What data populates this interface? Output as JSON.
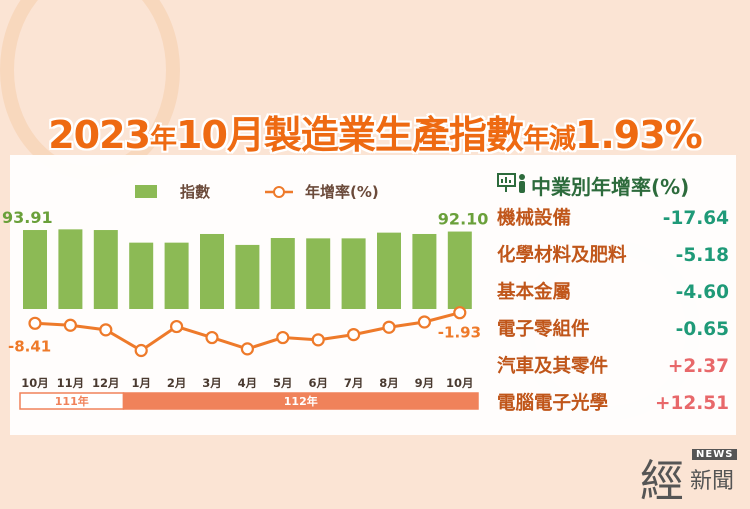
{
  "title": {
    "year": "2023",
    "nian": "年",
    "month": "10月",
    "main": "製造業生產指數",
    "suffix": "年減",
    "value": "1.93%"
  },
  "legend": {
    "bar": "指數",
    "line": "年增率(%)"
  },
  "colors": {
    "bar": "#8cba55",
    "line": "#ee7a2a",
    "year_band": "#f0825a",
    "negative": "#1f9a78",
    "positive": "#e8686a"
  },
  "chart_data": {
    "type": "bar+line",
    "categories": [
      "10月",
      "11月",
      "12月",
      "1月",
      "2月",
      "3月",
      "4月",
      "5月",
      "6月",
      "7月",
      "8月",
      "9月",
      "10月"
    ],
    "year_groups": [
      {
        "label": "111年",
        "span": 3
      },
      {
        "label": "112年",
        "span": 10
      }
    ],
    "series": [
      {
        "name": "指數",
        "type": "bar",
        "values": [
          93.91,
          94.7,
          93.9,
          78.9,
          78.9,
          89.2,
          76.2,
          84.4,
          84.0,
          84.0,
          90.8,
          89.2,
          92.1
        ],
        "labels": {
          "0": "93.91",
          "12": "92.10"
        }
      },
      {
        "name": "年增率(%)",
        "type": "line",
        "values": [
          -8.41,
          -9.6,
          -12.4,
          -25.0,
          -10.4,
          -17.1,
          -24.0,
          -17.1,
          -18.5,
          -15.3,
          -10.8,
          -7.6,
          -1.93
        ],
        "labels": {
          "0": "-8.41",
          "12": "-1.93"
        }
      }
    ]
  },
  "industry": {
    "header": "中業別年增率(%)",
    "icon": "presenter-icon",
    "rows": [
      {
        "label": "機械設備",
        "value": "-17.64",
        "sign": "neg"
      },
      {
        "label": "化學材料及肥料",
        "value": "-5.18",
        "sign": "neg"
      },
      {
        "label": "基本金屬",
        "value": "-4.60",
        "sign": "neg"
      },
      {
        "label": "電子零組件",
        "value": "-0.65",
        "sign": "neg"
      },
      {
        "label": "汽車及其零件",
        "value": "+2.37",
        "sign": "pos"
      },
      {
        "label": "電腦電子光學",
        "value": "+12.51",
        "sign": "pos"
      }
    ]
  },
  "logo": {
    "big": "經",
    "news": "NEWS",
    "text": "新聞"
  }
}
